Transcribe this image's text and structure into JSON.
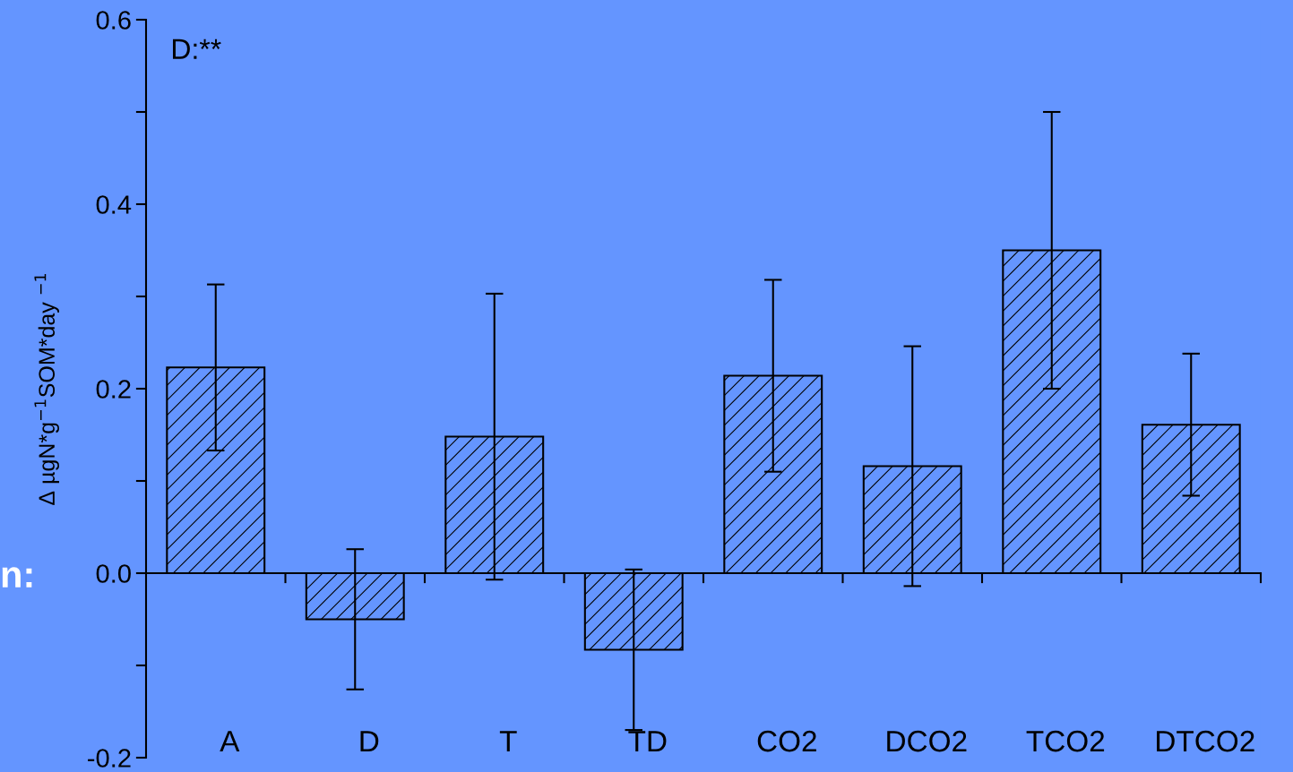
{
  "chart_data": {
    "type": "bar",
    "ylabel": "Δ µgN*g$^{−1}$SOM*day $^{−1}$",
    "categories": [
      "A",
      "D",
      "T",
      "TD",
      "CO2",
      "DCO2",
      "TCO2",
      "DTCO2"
    ],
    "values": [
      0.223,
      -0.05,
      0.148,
      -0.083,
      0.214,
      0.116,
      0.35,
      0.161
    ],
    "errors": [
      0.09,
      0.076,
      0.155,
      0.087,
      0.104,
      0.13,
      0.15,
      0.077
    ],
    "color": "#000000",
    "ylim": [
      -0.2,
      0.6
    ],
    "yticks": [
      {
        "value": -0.2,
        "label": "-0.2"
      },
      {
        "value": -0.1,
        "label": null
      },
      {
        "value": 0.0,
        "label": "0.0"
      },
      {
        "value": 0.1,
        "label": null
      },
      {
        "value": 0.2,
        "label": "0.2"
      },
      {
        "value": 0.3,
        "label": null
      },
      {
        "value": 0.4,
        "label": "0.4"
      },
      {
        "value": 0.5,
        "label": null
      },
      {
        "value": 0.6,
        "label": "0.6"
      }
    ],
    "annotations": [
      "D:**",
      "n:"
    ],
    "legend": false
  }
}
